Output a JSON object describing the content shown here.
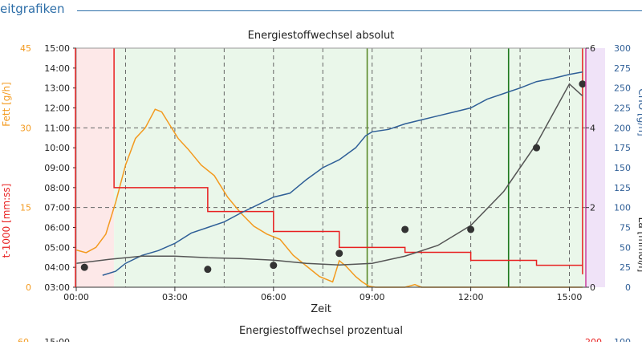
{
  "section": {
    "title": "eitgrafiken"
  },
  "chart_data": [
    {
      "type": "line",
      "title": "Energiestoffwechsel absolut",
      "xlabel": "Zeit",
      "xlim": [
        0,
        15.5
      ],
      "x_ticks": [
        0,
        3,
        6,
        9,
        12,
        15
      ],
      "x_tick_labels": [
        "00:00",
        "03:00",
        "06:00",
        "09:00",
        "12:00",
        "15:00"
      ],
      "colors": {
        "fat": "#f39a1f",
        "pace": "#e82020",
        "cho": "#2f5f97",
        "lactate": "#555555",
        "lactate_points": "#333333",
        "zone_pink": "#fde8e8",
        "zone_green": "#eaf7ea",
        "zone_purple": "#f0e3f8",
        "threshold": "#5a8a2a",
        "threshold_dark": "#1e7a1e"
      },
      "axes": {
        "fat": {
          "label": "Fett [g/h]",
          "ylim": [
            0,
            45
          ],
          "ticks": [
            0,
            15,
            30,
            45
          ],
          "tick_labels": [
            "0",
            "15",
            "30",
            "45"
          ]
        },
        "pace": {
          "label": "t-1000 [mm:ss]",
          "ylim": [
            3,
            15
          ],
          "tick_labels": [
            "03:00",
            "04:00",
            "05:00",
            "06:00",
            "07:00",
            "08:00",
            "09:00",
            "10:00",
            "11:00",
            "12:00",
            "13:00",
            "14:00",
            "15:00"
          ]
        },
        "lactate": {
          "label": "La [mmol/l]",
          "ylim": [
            0,
            6
          ],
          "ticks": [
            0,
            2,
            4,
            6
          ],
          "tick_labels": [
            "0",
            "2",
            "4",
            "6"
          ]
        },
        "cho": {
          "label": "CHO [g/h]",
          "ylim": [
            0,
            300
          ],
          "ticks": [
            0,
            25,
            50,
            75,
            100,
            125,
            150,
            175,
            200,
            225,
            250,
            275,
            300
          ],
          "tick_labels": [
            "0",
            "25",
            "50",
            "75",
            "100",
            "125",
            "150",
            "175",
            "200",
            "225",
            "250",
            "275",
            "300"
          ]
        }
      },
      "zones": [
        {
          "from": 0,
          "to": 1.15,
          "color": "pink"
        },
        {
          "from": 1.15,
          "to": 15.5,
          "color": "green"
        },
        {
          "from": 15.5,
          "to": 15.9,
          "color": "purple"
        }
      ],
      "thresholds": [
        8.85,
        13.15
      ],
      "series": [
        {
          "name": "Fett [g/h]",
          "axis": "fat",
          "x": [
            0,
            0.3,
            0.6,
            0.9,
            1.2,
            1.5,
            1.8,
            2.1,
            2.4,
            2.6,
            2.8,
            3.1,
            3.4,
            3.8,
            4.2,
            4.6,
            5.0,
            5.4,
            5.8,
            6.2,
            6.6,
            7.0,
            7.4,
            7.8,
            8.0,
            8.2,
            8.5,
            8.7,
            8.9,
            9.1,
            9.5,
            10.0,
            10.3,
            10.5,
            11,
            12,
            13,
            14,
            15,
            15.4
          ],
          "y": [
            7,
            6.5,
            7.5,
            10,
            16,
            23,
            28,
            30,
            33.5,
            33,
            31,
            28,
            26,
            23,
            21,
            17,
            14,
            11.5,
            10,
            9,
            6,
            4,
            2,
            1,
            5,
            4,
            2,
            1,
            0.2,
            0,
            0,
            0,
            0.5,
            0,
            0,
            0,
            0,
            0,
            0,
            0
          ]
        },
        {
          "name": "t-1000 [mm:ss]",
          "axis": "pace",
          "step": true,
          "x": [
            1.15,
            4.0,
            6.0,
            8.0,
            10.0,
            12.0,
            14.0,
            15.4
          ],
          "y": [
            8.0,
            6.8,
            5.8,
            5.0,
            4.75,
            4.35,
            4.1,
            3.65
          ]
        },
        {
          "name": "CHO [g/h]",
          "axis": "cho",
          "x": [
            0.8,
            1.2,
            1.5,
            2.0,
            2.5,
            3.0,
            3.5,
            4.0,
            4.5,
            5.0,
            5.5,
            6.0,
            6.5,
            7.0,
            7.5,
            8.0,
            8.5,
            8.8,
            9.0,
            9.5,
            10.0,
            10.5,
            11.0,
            11.5,
            12.0,
            12.5,
            13.0,
            13.5,
            14.0,
            14.5,
            15.0,
            15.4
          ],
          "y": [
            15,
            20,
            30,
            40,
            46,
            55,
            68,
            75,
            82,
            93,
            103,
            113,
            118,
            135,
            150,
            160,
            175,
            190,
            195,
            198,
            205,
            210,
            215,
            220,
            225,
            236,
            243,
            250,
            258,
            262,
            267,
            270
          ]
        },
        {
          "name": "La [mmol/l]",
          "axis": "lactate",
          "x": [
            0,
            1,
            2,
            3,
            4,
            5,
            6,
            7,
            8,
            9,
            10,
            11,
            12,
            13,
            14,
            15,
            15.4
          ],
          "y": [
            0.6,
            0.7,
            0.78,
            0.78,
            0.74,
            0.72,
            0.68,
            0.6,
            0.56,
            0.6,
            0.78,
            1.05,
            1.55,
            2.4,
            3.6,
            5.1,
            4.8
          ]
        },
        {
          "name": "La [mmol/l]",
          "axis": "lactate",
          "points": true,
          "x": [
            0.25,
            4.0,
            6.0,
            8.0,
            10.0,
            12.0,
            14.0,
            15.4
          ],
          "y": [
            0.5,
            0.45,
            0.55,
            0.85,
            1.45,
            1.45,
            3.5,
            5.1
          ]
        }
      ]
    },
    {
      "type": "line",
      "title": "Energiestoffwechsel prozentual",
      "axes": {
        "left1": {
          "tick_labels": [
            "60"
          ]
        },
        "left2": {
          "tick_labels": [
            "15:00"
          ]
        },
        "right1": {
          "tick_labels": [
            "200"
          ]
        },
        "right2": {
          "tick_labels": [
            "100"
          ]
        }
      }
    }
  ]
}
